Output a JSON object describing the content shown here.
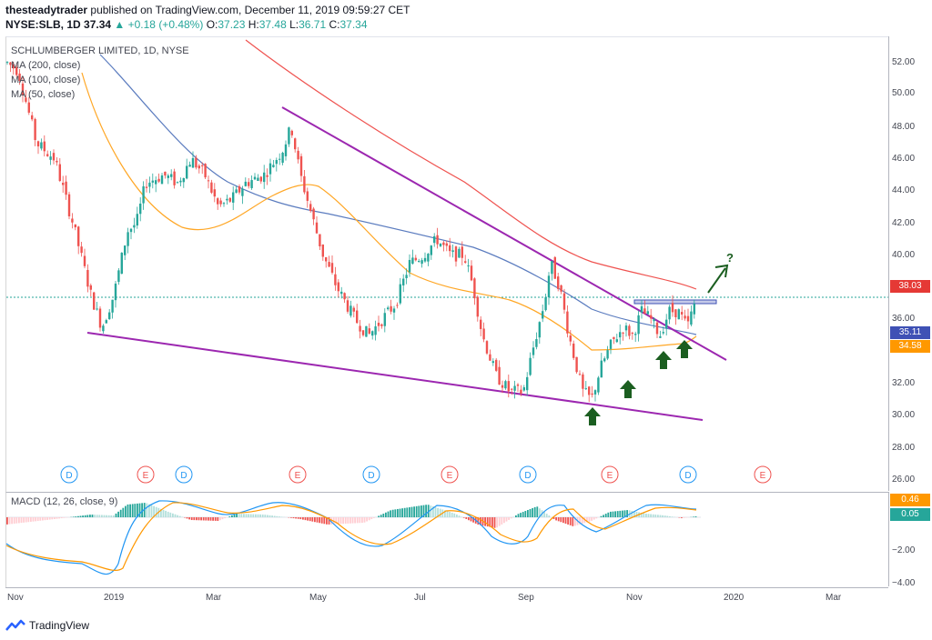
{
  "header": {
    "author": "thesteadytrader",
    "published": "published on TradingView.com, December 11, 2019 09:59:27 CET",
    "symbol": "NYSE:SLB, 1D",
    "last": "37.34",
    "change": "▲ +0.18 (+0.48%)",
    "o_label": "O:",
    "o_value": "37.23",
    "h_label": "H:",
    "h_value": "37.48",
    "l_label": "L:",
    "l_value": "36.71",
    "c_label": "C:",
    "c_value": "37.34"
  },
  "legend": {
    "title": "SCHLUMBERGER LIMITED, 1D, NYSE",
    "ma200": "MA (200, close)",
    "ma100": "MA (100, close)",
    "ma50": "MA (50, close)"
  },
  "macd": {
    "label": "MACD (12, 26, close, 9)"
  },
  "price_axis": {
    "ticks": [
      "52.00",
      "50.00",
      "48.00",
      "46.00",
      "44.00",
      "42.00",
      "40.00",
      "36.00",
      "32.00",
      "30.00",
      "28.00",
      "26.00"
    ],
    "badges": [
      {
        "value": "38.03",
        "color": "#e53935"
      },
      {
        "value": "35.11",
        "color": "#3f51b5"
      },
      {
        "value": "34.58",
        "color": "#ff9800"
      }
    ],
    "current_line_value": 37.34
  },
  "macd_axis": {
    "ticks": [
      "−2.00",
      "−4.00"
    ],
    "badges": [
      {
        "value": "0.46",
        "color": "#ff9800"
      },
      {
        "value": "0.05",
        "color": "#26a69a"
      }
    ]
  },
  "time_axis": {
    "labels": [
      "Nov",
      "2019",
      "Mar",
      "May",
      "Jul",
      "Sep",
      "Nov",
      "2020",
      "Mar"
    ]
  },
  "events": [
    {
      "type": "D"
    },
    {
      "type": "E"
    },
    {
      "type": "D"
    },
    {
      "type": "E"
    },
    {
      "type": "D"
    },
    {
      "type": "E"
    },
    {
      "type": "D"
    },
    {
      "type": "E"
    },
    {
      "type": "D"
    },
    {
      "type": "E"
    }
  ],
  "annotation": {
    "question": "?"
  },
  "footer": {
    "brand": "TradingView"
  },
  "colors": {
    "bull": "#26a69a",
    "bear": "#ef5350",
    "ma200": "#ef5350",
    "ma100": "#5b7cbf",
    "ma50": "#ffa726",
    "trend": "#9c27b0",
    "arrow": "#1b5e20"
  }
}
